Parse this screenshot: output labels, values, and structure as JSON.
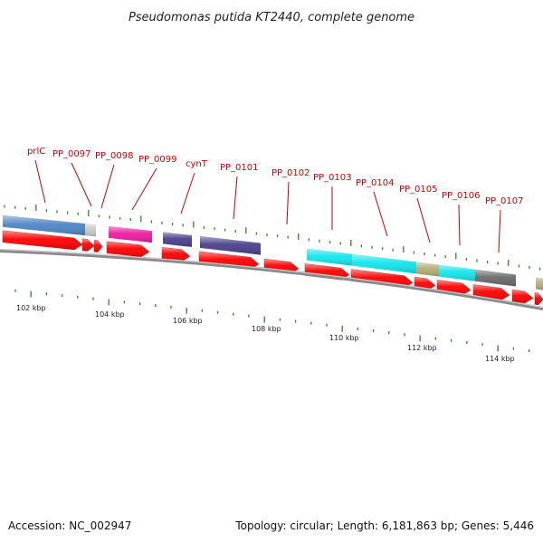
{
  "title": "Pseudomonas putida KT2440, complete genome",
  "accession": "Accession: NC_002947",
  "summary": "Topology: circular; Length: 6,181,863 bp; Genes: 5,446",
  "colors": {
    "forward_arrow": "#ff0000",
    "label": "#cc0000",
    "tick": "#2f8a1e",
    "backbone": "#8a8a8a"
  },
  "gene_labels": [
    "prlC",
    "PP_0097",
    "PP_0098",
    "PP_0099",
    "cynT",
    "PP_0101",
    "PP_0102",
    "PP_0103",
    "PP_0104",
    "PP_0105",
    "PP_0106",
    "PP_0107"
  ],
  "scale_labels": [
    "102 kbp",
    "104 kbp",
    "106 kbp",
    "108 kbp",
    "110 kbp",
    "112 kbp",
    "114 kbp"
  ]
}
